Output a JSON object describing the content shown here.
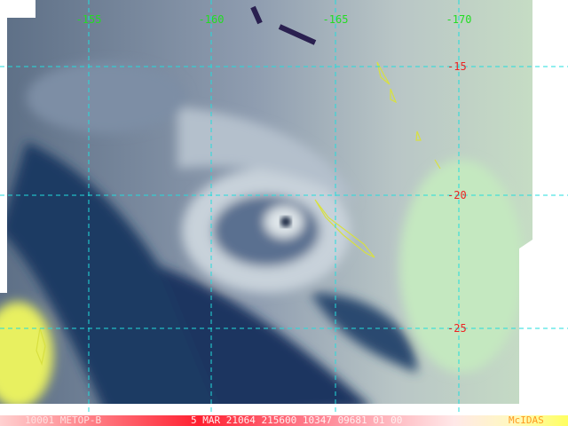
{
  "grid": {
    "longitudes": [
      "-155",
      "-160",
      "-165",
      "-170"
    ],
    "latitudes": [
      "-15",
      "-20",
      "-25"
    ]
  },
  "footer": {
    "satellite": "10001 METOP-B",
    "timestamp": "5 MAR 21064 215600 10347 09681 01 00",
    "software": "McIDAS"
  }
}
